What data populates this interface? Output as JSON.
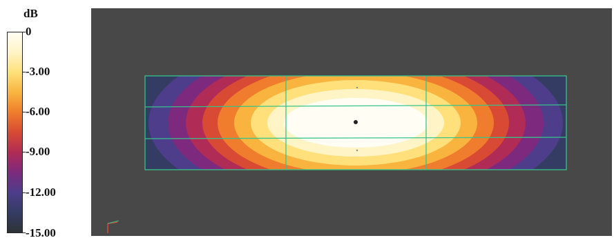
{
  "legend": {
    "unit": "dB",
    "labels": [
      "0",
      "-3.00",
      "-6.00",
      "-9.00",
      "-12.00",
      "-15.00"
    ]
  },
  "colors": {
    "background": "#484848",
    "grid": "#35c48a",
    "contour_bands": [
      "#fffdf4",
      "#fff4c6",
      "#ffe07a",
      "#f8b43f",
      "#ef7d2d",
      "#d84a34",
      "#b02b55",
      "#7d2a7e",
      "#4d3d8a",
      "#343c63"
    ]
  },
  "plot": {
    "grid": {
      "rows": 3,
      "cols": 3
    },
    "icons": [
      "center-marker-icon",
      "axis-triad-icon"
    ]
  }
}
